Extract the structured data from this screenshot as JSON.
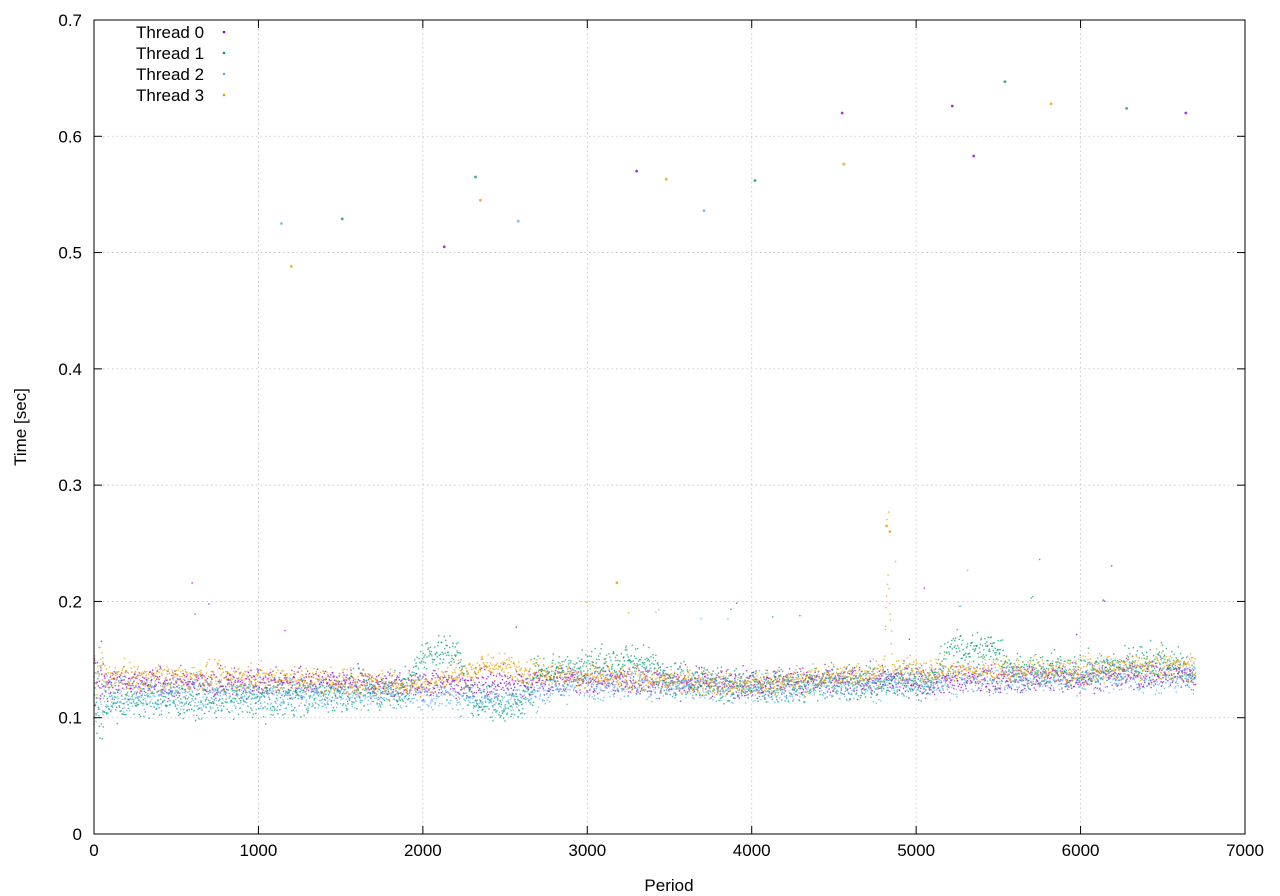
{
  "chart_data": {
    "type": "scatter",
    "title": "",
    "xlabel": "Period",
    "ylabel": "Time [sec]",
    "xlim": [
      0,
      7000
    ],
    "ylim": [
      0,
      0.7
    ],
    "xticks": [
      "0",
      "1000",
      "2000",
      "3000",
      "4000",
      "5000",
      "6000",
      "7000"
    ],
    "yticks": [
      "0",
      "0.1",
      "0.2",
      "0.3",
      "0.4",
      "0.5",
      "0.6",
      "0.7"
    ],
    "grid": true,
    "legend_position": "top-left",
    "period_range": [
      0,
      6700
    ],
    "series": [
      {
        "name": "Thread 0",
        "color": "#9400d3",
        "marker": "dot",
        "baseline": [
          [
            0,
            0.13
          ],
          [
            1000,
            0.13
          ],
          [
            2000,
            0.128
          ],
          [
            3000,
            0.132
          ],
          [
            4000,
            0.13
          ],
          [
            5000,
            0.132
          ],
          [
            6000,
            0.135
          ],
          [
            6700,
            0.138
          ]
        ],
        "spread": 0.012,
        "outliers": [
          [
            3300,
            0.57
          ],
          [
            4550,
            0.62
          ],
          [
            5220,
            0.626
          ],
          [
            5350,
            0.583
          ],
          [
            6640,
            0.62
          ],
          [
            2130,
            0.505
          ]
        ]
      },
      {
        "name": "Thread 1",
        "color": "#009e73",
        "marker": "dot",
        "baseline": [
          [
            0,
            0.11
          ],
          [
            200,
            0.115
          ],
          [
            1000,
            0.115
          ],
          [
            1900,
            0.125
          ],
          [
            2000,
            0.155
          ],
          [
            2200,
            0.158
          ],
          [
            2300,
            0.115
          ],
          [
            2600,
            0.11
          ],
          [
            2700,
            0.14
          ],
          [
            3000,
            0.145
          ],
          [
            3300,
            0.15
          ],
          [
            3500,
            0.135
          ],
          [
            4000,
            0.125
          ],
          [
            4500,
            0.13
          ],
          [
            4900,
            0.13
          ],
          [
            5100,
            0.13
          ],
          [
            5200,
            0.158
          ],
          [
            5500,
            0.16
          ],
          [
            5600,
            0.14
          ],
          [
            6000,
            0.14
          ],
          [
            6500,
            0.15
          ],
          [
            6700,
            0.135
          ]
        ],
        "spread": 0.015,
        "outliers": [
          [
            1510,
            0.529
          ],
          [
            2320,
            0.565
          ],
          [
            4020,
            0.562
          ],
          [
            6280,
            0.624
          ],
          [
            5540,
            0.647
          ]
        ]
      },
      {
        "name": "Thread 2",
        "color": "#56b4e9",
        "marker": "dot",
        "baseline": [
          [
            0,
            0.12
          ],
          [
            500,
            0.12
          ],
          [
            1000,
            0.12
          ],
          [
            2000,
            0.12
          ],
          [
            2500,
            0.115
          ],
          [
            3000,
            0.13
          ],
          [
            4000,
            0.125
          ],
          [
            5000,
            0.13
          ],
          [
            6000,
            0.135
          ],
          [
            6700,
            0.135
          ]
        ],
        "spread": 0.013,
        "outliers": [
          [
            2580,
            0.527
          ],
          [
            3710,
            0.536
          ],
          [
            1140,
            0.525
          ]
        ]
      },
      {
        "name": "Thread 3",
        "color": "#e69f00",
        "marker": "dot",
        "baseline": [
          [
            0,
            0.135
          ],
          [
            1000,
            0.135
          ],
          [
            2000,
            0.128
          ],
          [
            2400,
            0.145
          ],
          [
            3000,
            0.135
          ],
          [
            4000,
            0.128
          ],
          [
            4800,
            0.14
          ],
          [
            4830,
            0.22
          ],
          [
            4860,
            0.14
          ],
          [
            5000,
            0.14
          ],
          [
            6000,
            0.14
          ],
          [
            6700,
            0.145
          ]
        ],
        "spread": 0.011,
        "outliers": [
          [
            1200,
            0.488
          ],
          [
            2350,
            0.545
          ],
          [
            3480,
            0.563
          ],
          [
            4560,
            0.576
          ],
          [
            5820,
            0.628
          ],
          [
            4820,
            0.265
          ],
          [
            4840,
            0.26
          ],
          [
            3180,
            0.216
          ]
        ]
      }
    ]
  }
}
